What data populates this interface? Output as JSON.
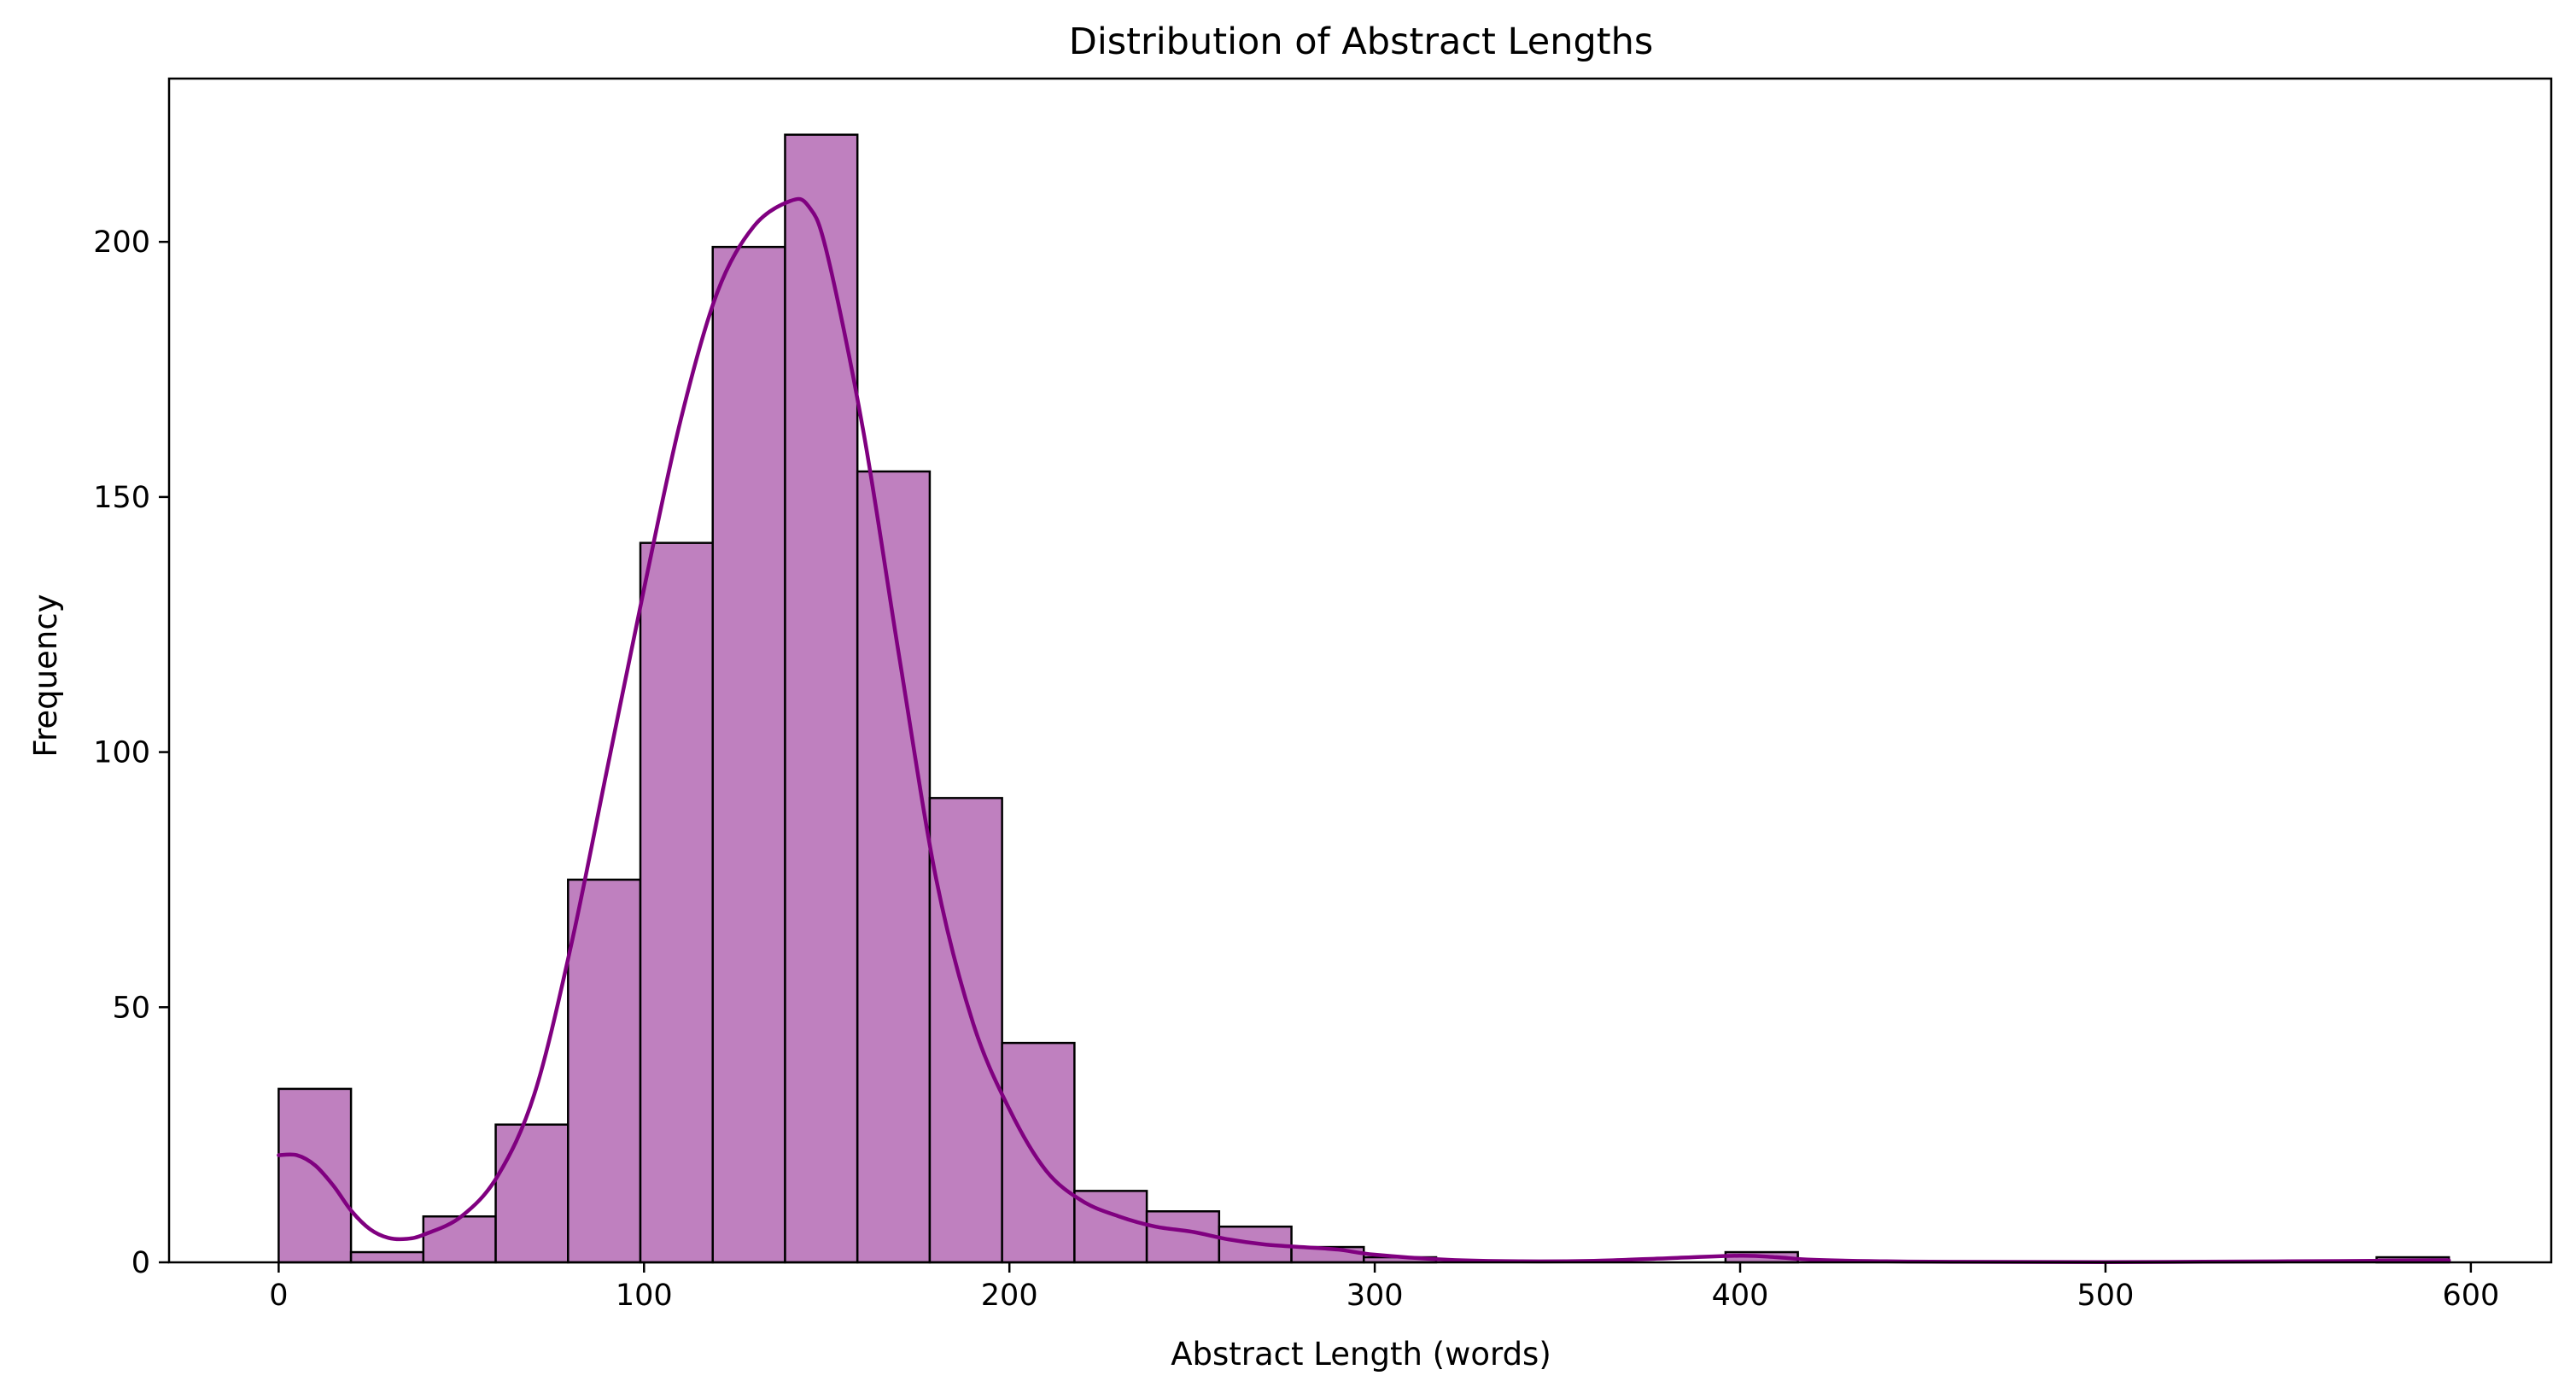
{
  "chart_data": {
    "type": "bar",
    "title": "Distribution of Abstract Lengths",
    "xlabel": "Abstract Length (words)",
    "ylabel": "Frequency",
    "xlim": [
      -30,
      622
    ],
    "ylim": [
      0,
      232
    ],
    "xticks": [
      0,
      100,
      200,
      300,
      400,
      500,
      600
    ],
    "yticks": [
      0,
      50,
      100,
      150,
      200
    ],
    "grid": false,
    "bin_width": 19.8,
    "bins": [
      {
        "x0": 0.0,
        "x1": 19.8,
        "count": 34
      },
      {
        "x0": 19.8,
        "x1": 39.6,
        "count": 2
      },
      {
        "x0": 39.6,
        "x1": 59.4,
        "count": 9
      },
      {
        "x0": 59.4,
        "x1": 79.2,
        "count": 27
      },
      {
        "x0": 79.2,
        "x1": 99.0,
        "count": 75
      },
      {
        "x0": 99.0,
        "x1": 118.8,
        "count": 141
      },
      {
        "x0": 118.8,
        "x1": 138.6,
        "count": 199
      },
      {
        "x0": 138.6,
        "x1": 158.4,
        "count": 221
      },
      {
        "x0": 158.4,
        "x1": 178.2,
        "count": 155
      },
      {
        "x0": 178.2,
        "x1": 198.0,
        "count": 91
      },
      {
        "x0": 198.0,
        "x1": 217.8,
        "count": 43
      },
      {
        "x0": 217.8,
        "x1": 237.6,
        "count": 14
      },
      {
        "x0": 237.6,
        "x1": 257.4,
        "count": 10
      },
      {
        "x0": 257.4,
        "x1": 277.2,
        "count": 7
      },
      {
        "x0": 277.2,
        "x1": 297.0,
        "count": 3
      },
      {
        "x0": 297.0,
        "x1": 316.8,
        "count": 1
      },
      {
        "x0": 316.8,
        "x1": 336.6,
        "count": 0
      },
      {
        "x0": 336.6,
        "x1": 356.4,
        "count": 0
      },
      {
        "x0": 356.4,
        "x1": 376.2,
        "count": 0
      },
      {
        "x0": 376.2,
        "x1": 396.0,
        "count": 0
      },
      {
        "x0": 396.0,
        "x1": 415.8,
        "count": 2
      },
      {
        "x0": 415.8,
        "x1": 435.6,
        "count": 0
      },
      {
        "x0": 435.6,
        "x1": 455.4,
        "count": 0
      },
      {
        "x0": 455.4,
        "x1": 475.2,
        "count": 0
      },
      {
        "x0": 475.2,
        "x1": 495.0,
        "count": 0
      },
      {
        "x0": 495.0,
        "x1": 514.8,
        "count": 0
      },
      {
        "x0": 514.8,
        "x1": 534.6,
        "count": 0
      },
      {
        "x0": 534.6,
        "x1": 554.4,
        "count": 0
      },
      {
        "x0": 554.4,
        "x1": 574.2,
        "count": 0
      },
      {
        "x0": 574.2,
        "x1": 594.0,
        "count": 1
      }
    ],
    "kde": {
      "x": [
        0,
        5,
        10,
        15,
        20,
        25,
        30,
        35,
        40,
        50,
        60,
        70,
        80,
        90,
        100,
        110,
        120,
        130,
        140,
        145,
        150,
        160,
        170,
        180,
        190,
        200,
        210,
        220,
        230,
        240,
        250,
        260,
        270,
        280,
        290,
        300,
        320,
        340,
        360,
        380,
        400,
        410,
        420,
        440,
        460,
        500,
        550,
        594
      ],
      "y": [
        21,
        21,
        19,
        15,
        10,
        6.5,
        4.8,
        4.6,
        5.5,
        9,
        17,
        33,
        62,
        97,
        132,
        165,
        190,
        203,
        208,
        207,
        198,
        163,
        118,
        75,
        47,
        30,
        18,
        12,
        9,
        7,
        6,
        4.5,
        3.5,
        3,
        2.5,
        1.5,
        0.5,
        0.2,
        0.3,
        0.8,
        1.3,
        1,
        0.5,
        0.2,
        0.1,
        0.05,
        0.2,
        0.4
      ]
    },
    "colors": {
      "bar_fill": "#bf80bf",
      "bar_edge": "#000000",
      "kde_line": "#800080",
      "axes": "#000000",
      "background": "#ffffff"
    }
  }
}
